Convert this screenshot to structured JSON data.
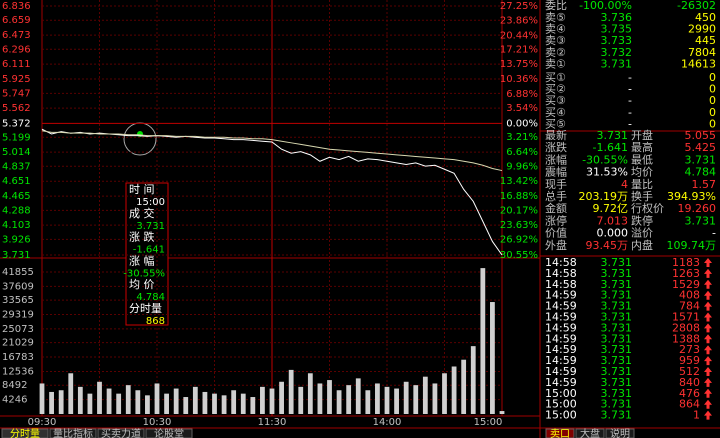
{
  "chart_data": [
    {
      "type": "line",
      "categories": [
        "09:30",
        null,
        null,
        null,
        null,
        null,
        null,
        null,
        null,
        null,
        null,
        null,
        "10:30",
        null,
        null,
        null,
        null,
        null,
        null,
        null,
        null,
        null,
        null,
        null,
        "11:30",
        null,
        null,
        null,
        null,
        null,
        null,
        null,
        null,
        null,
        null,
        null,
        "14:00",
        null,
        null,
        null,
        null,
        null,
        null,
        null,
        null,
        null,
        null,
        null,
        "15:00"
      ],
      "series": [
        {
          "color": "#ffffff",
          "values": [
            5.3,
            5.24,
            5.27,
            5.25,
            5.26,
            5.24,
            5.25,
            5.24,
            5.23,
            5.22,
            5.22,
            5.21,
            5.22,
            5.21,
            5.2,
            5.21,
            5.2,
            5.19,
            5.19,
            5.18,
            5.17,
            5.17,
            5.16,
            5.15,
            5.14,
            5.05,
            5.0,
            5.02,
            4.98,
            4.9,
            4.95,
            4.92,
            4.96,
            4.9,
            4.93,
            4.92,
            4.9,
            4.88,
            4.86,
            4.88,
            4.84,
            4.85,
            4.8,
            4.75,
            4.55,
            4.4,
            4.15,
            3.9,
            3.731
          ]
        },
        {
          "color": "#d8d8b0",
          "values": [
            5.28,
            5.26,
            5.26,
            5.25,
            5.25,
            5.25,
            5.24,
            5.24,
            5.24,
            5.23,
            5.23,
            5.22,
            5.22,
            5.22,
            5.21,
            5.21,
            5.21,
            5.2,
            5.2,
            5.2,
            5.19,
            5.19,
            5.18,
            5.18,
            5.17,
            5.15,
            5.13,
            5.11,
            5.09,
            5.07,
            5.05,
            5.04,
            5.03,
            5.02,
            5.01,
            5.0,
            4.99,
            4.98,
            4.97,
            4.96,
            4.95,
            4.94,
            4.93,
            4.92,
            4.9,
            4.88,
            4.85,
            4.81,
            4.784
          ]
        }
      ],
      "ylim": [
        3.731,
        6.836
      ],
      "yticks": [
        6.836,
        6.659,
        6.473,
        6.296,
        6.111,
        5.925,
        5.747,
        5.562,
        5.372,
        5.199,
        5.014,
        4.837,
        4.651,
        4.465,
        4.288,
        4.103,
        3.926,
        3.731
      ],
      "y2lim": [
        -30.55,
        27.25
      ],
      "y2ticks": [
        {
          "value": 27.25,
          "label": "27.25%"
        },
        {
          "value": 23.86,
          "label": "23.86%"
        },
        {
          "value": 20.44,
          "label": "20.44%"
        },
        {
          "value": 17.21,
          "label": "17.21%"
        },
        {
          "value": 13.75,
          "label": "13.75%"
        },
        {
          "value": 10.36,
          "label": "10.36%"
        },
        {
          "value": 6.88,
          "label": "6.88%"
        },
        {
          "value": 3.54,
          "label": "3.54%"
        },
        {
          "value": 0,
          "label": "0.00%"
        },
        {
          "value": -3.21,
          "label": "3.21%"
        },
        {
          "value": -6.64,
          "label": "6.64%"
        },
        {
          "value": -9.96,
          "label": "9.96%"
        },
        {
          "value": -13.42,
          "label": "13.42%"
        },
        {
          "value": -16.88,
          "label": "16.88%"
        },
        {
          "value": -20.17,
          "label": "20.17%"
        },
        {
          "value": -23.63,
          "label": "23.63%"
        },
        {
          "value": -26.92,
          "label": "26.92%"
        },
        {
          "value": -30.55,
          "label": "30.55%"
        }
      ],
      "grid": true
    },
    {
      "type": "bar",
      "color": "#d0d0d0",
      "values": [
        9000,
        6500,
        7000,
        12000,
        8000,
        6000,
        9500,
        7500,
        6000,
        8500,
        7000,
        5500,
        9000,
        6000,
        7500,
        5000,
        8000,
        6500,
        6000,
        5500,
        7000,
        6000,
        5000,
        8000,
        7500,
        9500,
        13000,
        8000,
        12000,
        9000,
        10000,
        7000,
        8500,
        10500,
        7000,
        9000,
        8000,
        7500,
        9500,
        8500,
        11000,
        9000,
        12000,
        14000,
        16000,
        20000,
        43000,
        33000,
        868
      ],
      "ylim": [
        0,
        44800
      ],
      "yticks": [
        41855,
        37609,
        33565,
        29319,
        25073,
        21029,
        16783,
        12536,
        8492,
        4246
      ],
      "grid": true
    }
  ],
  "tooltip": [
    [
      "时 间",
      "15:00"
    ],
    [
      "成 交",
      "3.731"
    ],
    [
      "涨 跌",
      "-1.641"
    ],
    [
      "涨 幅",
      "-30.55%"
    ],
    [
      "均 价",
      "4.784"
    ],
    [
      "分时量",
      "868"
    ]
  ],
  "order_book": {
    "ratio": [
      "委比",
      "-100.00%",
      "-26302"
    ],
    "asks": [
      [
        "卖⑤",
        "3.736",
        "450"
      ],
      [
        "卖④",
        "3.735",
        "2990"
      ],
      [
        "卖③",
        "3.733",
        "445"
      ],
      [
        "卖②",
        "3.732",
        "7804"
      ],
      [
        "卖①",
        "3.731",
        "14613"
      ]
    ],
    "bids": [
      [
        "买①",
        "-",
        "0"
      ],
      [
        "买②",
        "-",
        "0"
      ],
      [
        "买③",
        "-",
        "0"
      ],
      [
        "买④",
        "-",
        "0"
      ],
      [
        "买⑤",
        "-",
        "0"
      ]
    ]
  },
  "quote": [
    [
      "最新",
      "3.731",
      "开盘",
      "5.055"
    ],
    [
      "涨跌",
      "-1.641",
      "最高",
      "5.425"
    ],
    [
      "涨幅",
      "-30.55%",
      "最低",
      "3.731"
    ],
    [
      "震幅",
      "31.53%",
      "均价",
      "4.784"
    ],
    [
      "现手",
      "4",
      "量比",
      "1.57"
    ],
    [
      "总手",
      "203.19万",
      "换手",
      "394.93%"
    ],
    [
      "金额",
      "9.72亿",
      "行权价",
      "19.260"
    ],
    [
      "涨停",
      "7.013",
      "跌停",
      "3.731"
    ],
    [
      "价值",
      "0.000",
      "溢价",
      "-"
    ],
    [
      "外盘",
      "93.45万",
      "内盘",
      "109.74万"
    ]
  ],
  "trades": [
    [
      "14:58",
      "3.731",
      "1183"
    ],
    [
      "14:58",
      "3.731",
      "1263"
    ],
    [
      "14:58",
      "3.731",
      "1529"
    ],
    [
      "14:59",
      "3.731",
      "408"
    ],
    [
      "14:59",
      "3.731",
      "784"
    ],
    [
      "14:59",
      "3.731",
      "1571"
    ],
    [
      "14:59",
      "3.731",
      "2808"
    ],
    [
      "14:59",
      "3.731",
      "1388"
    ],
    [
      "14:59",
      "3.731",
      "273"
    ],
    [
      "14:59",
      "3.731",
      "959"
    ],
    [
      "14:59",
      "3.731",
      "512"
    ],
    [
      "14:59",
      "3.731",
      "840"
    ],
    [
      "15:00",
      "3.731",
      "476"
    ],
    [
      "15:00",
      "3.731",
      "864"
    ],
    [
      "15:00",
      "3.731",
      "1"
    ]
  ],
  "tabs": [
    "分时量",
    "量比指标",
    "买卖力道",
    "论股堂"
  ],
  "right_tabs": [
    "卖口",
    "大盘",
    "说明"
  ]
}
